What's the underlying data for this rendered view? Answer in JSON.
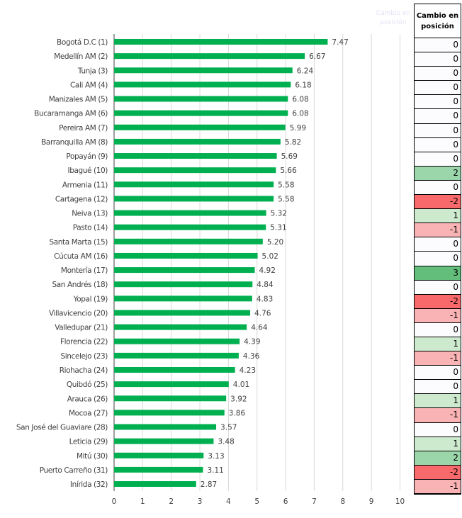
{
  "chart_data": {
    "type": "bar",
    "orientation": "horizontal",
    "categories": [
      "Bogotá D.C (1)",
      "Medellín AM (2)",
      "Tunja (3)",
      "Cali AM (4)",
      "Manizales AM (5)",
      "Bucaramanga AM (6)",
      "Pereira AM (7)",
      "Barranquilla AM (8)",
      "Popayán (9)",
      "Ibagué (10)",
      "Armenia (11)",
      "Cartagena (12)",
      "Neiva (13)",
      "Pasto (14)",
      "Santa Marta (15)",
      "Cúcuta AM (16)",
      "Montería (17)",
      "San Andrés (18)",
      "Yopal (19)",
      "Villavicencio (20)",
      "Valledupar (21)",
      "Florencia (22)",
      "Sincelejo (23)",
      "Riohacha (24)",
      "Quibdó (25)",
      "Arauca (26)",
      "Mocoa (27)",
      "San José del Guaviare (28)",
      "Leticia (29)",
      "Mitú (30)",
      "Puerto Carreño (31)",
      "Inírida (32)"
    ],
    "values": [
      7.47,
      6.67,
      6.24,
      6.18,
      6.08,
      6.08,
      5.99,
      5.82,
      5.69,
      5.66,
      5.58,
      5.58,
      5.32,
      5.31,
      5.2,
      5.02,
      4.92,
      4.84,
      4.83,
      4.76,
      4.64,
      4.39,
      4.36,
      4.23,
      4.01,
      3.92,
      3.86,
      3.57,
      3.48,
      3.13,
      3.11,
      2.87
    ],
    "value_labels": [
      "7.47",
      "6.67",
      "6.24",
      "6.18",
      "6.08",
      "6.08",
      "5.99",
      "5.82",
      "5.69",
      "5.66",
      "5.58",
      "5.58",
      "5.32",
      "5.31",
      "5.20",
      "5.02",
      "4.92",
      "4.84",
      "4.83",
      "4.76",
      "4.64",
      "4.39",
      "4.36",
      "4.23",
      "4.01",
      "3.92",
      "3.86",
      "3.57",
      "3.48",
      "3.13",
      "3.11",
      "2.87"
    ],
    "xlim": [
      0,
      10
    ],
    "xticks": [
      "0",
      "1",
      "2",
      "3",
      "4",
      "5",
      "6",
      "7",
      "8",
      "9",
      "10"
    ],
    "grid": true,
    "bar_color": "#00b050"
  },
  "ghost_header": "Cambio en posición",
  "table": {
    "header": "Cambio en posición",
    "values": [
      0,
      0,
      0,
      0,
      0,
      0,
      0,
      0,
      0,
      2,
      0,
      -2,
      1,
      -1,
      0,
      0,
      3,
      0,
      -2,
      -1,
      0,
      1,
      -1,
      0,
      0,
      1,
      -1,
      0,
      1,
      2,
      -2,
      -1
    ],
    "colors": {
      "3": "#63be7b",
      "2": "#9bd5aa",
      "1": "#cdeacf",
      "0": "#fcfcff",
      "-1": "#fab3b5",
      "-2": "#f8696b"
    }
  }
}
